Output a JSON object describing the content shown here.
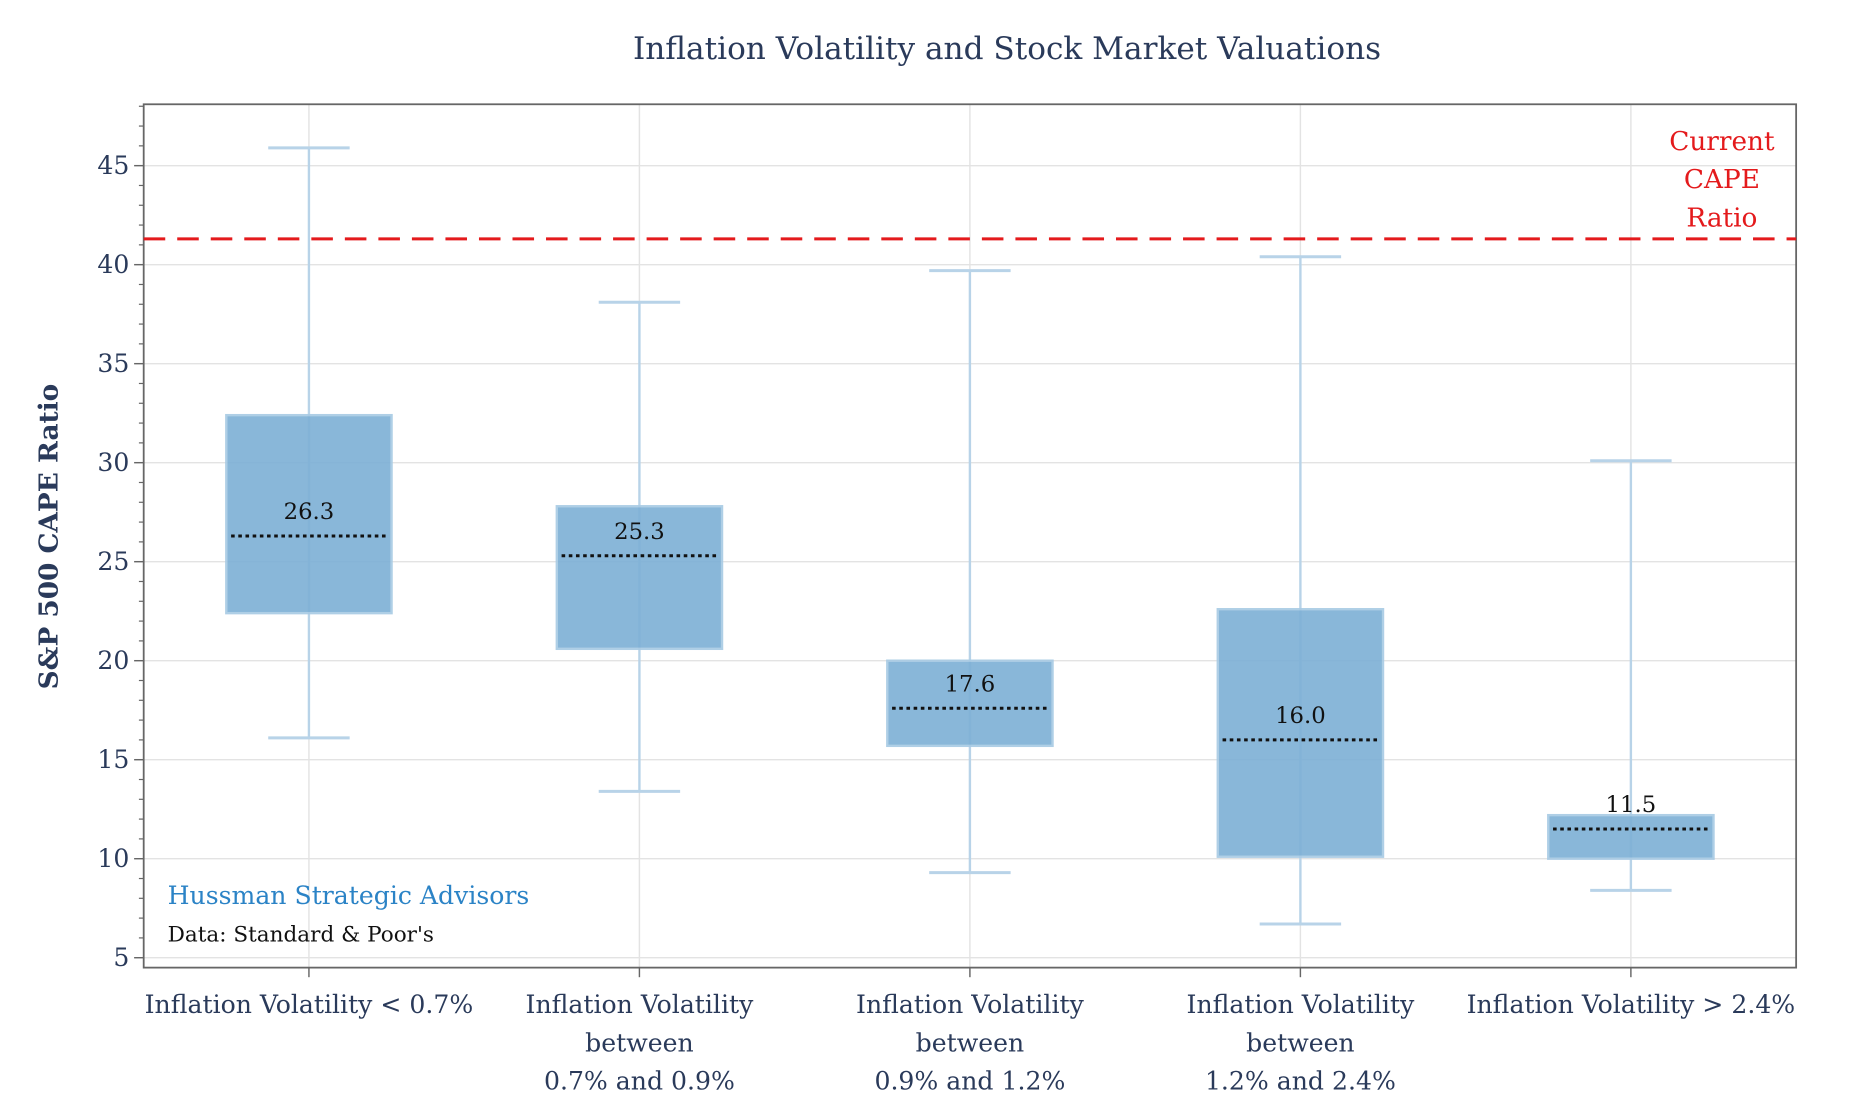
{
  "chart_data": {
    "type": "box",
    "title": "Inflation Volatility and Stock Market Valuations",
    "ylabel": "S&P 500 CAPE Ratio",
    "xlabel": "",
    "ylim": [
      4.5,
      48.1
    ],
    "yticks": [
      5,
      10,
      15,
      20,
      25,
      30,
      35,
      40,
      45
    ],
    "grid": true,
    "categories": [
      [
        "Inflation Volatility < 0.7%"
      ],
      [
        "Inflation Volatility",
        "between",
        "0.7% and 0.9%"
      ],
      [
        "Inflation Volatility",
        "between",
        "0.9% and 1.2%"
      ],
      [
        "Inflation Volatility",
        "between",
        "1.2% and 2.4%"
      ],
      [
        "Inflation Volatility > 2.4%"
      ]
    ],
    "boxes": [
      {
        "whisker_low": 16.1,
        "q1": 22.4,
        "median": 26.3,
        "q3": 32.4,
        "whisker_high": 45.9,
        "label": "26.3"
      },
      {
        "whisker_low": 13.4,
        "q1": 20.6,
        "median": 25.3,
        "q3": 27.8,
        "whisker_high": 38.1,
        "label": "25.3"
      },
      {
        "whisker_low": 9.3,
        "q1": 15.7,
        "median": 17.6,
        "q3": 20.0,
        "whisker_high": 39.7,
        "label": "17.6"
      },
      {
        "whisker_low": 6.7,
        "q1": 10.1,
        "median": 16.0,
        "q3": 22.6,
        "whisker_high": 40.4,
        "label": "16.0"
      },
      {
        "whisker_low": 8.4,
        "q1": 10.0,
        "median": 11.5,
        "q3": 12.2,
        "whisker_high": 30.1,
        "label": "11.5"
      }
    ],
    "reference_line": {
      "value": 41.3,
      "label": [
        "Current",
        "CAPE",
        "Ratio"
      ],
      "color": "#e41a1c",
      "style": "dashed"
    },
    "colors": {
      "box": "#7fb1d6",
      "whisker": "#b8d3e8",
      "title": "#2a3a5a",
      "brand": "#2b83c6"
    }
  },
  "annotations": {
    "brand": "Hussman Strategic Advisors",
    "source": "Data: Standard & Poor's"
  }
}
